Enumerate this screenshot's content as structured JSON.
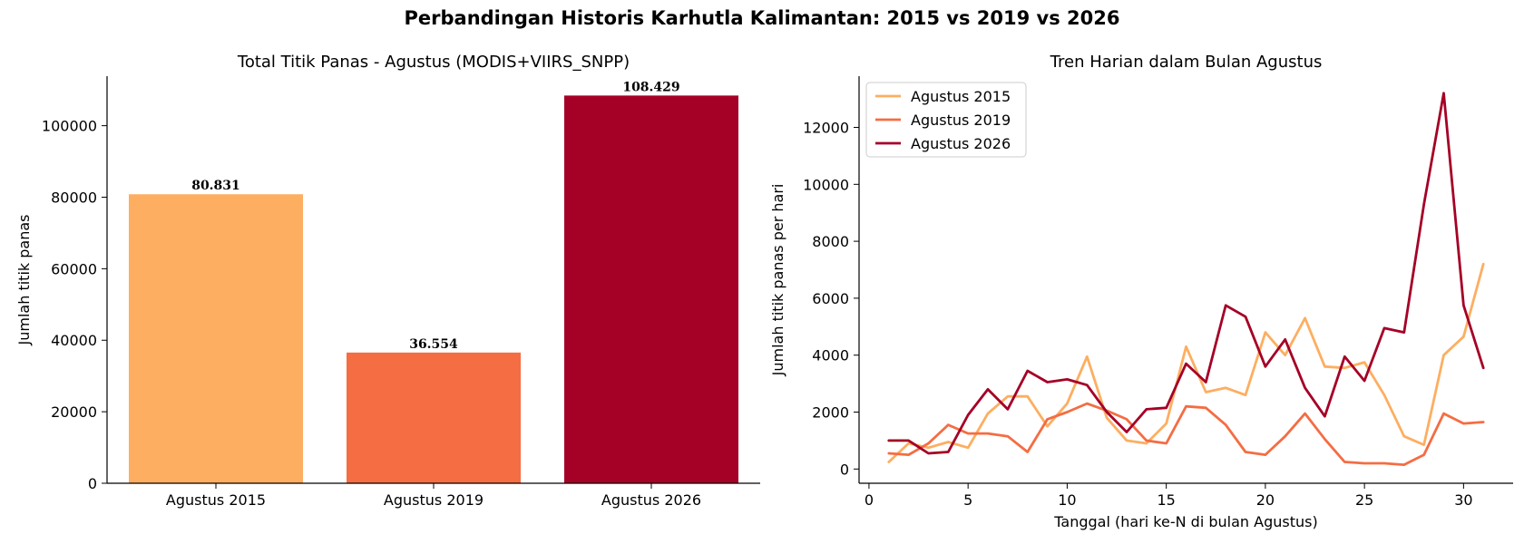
{
  "suptitle": "Perbandingan Historis Karhutla Kalimantan: 2015 vs 2019 vs 2026",
  "chart_data": [
    {
      "type": "bar",
      "title": "Total Titik Panas - Agustus (MODIS+VIIRS_SNPP)",
      "xlabel": "",
      "ylabel": "Jumlah titik panas",
      "categories": [
        "Agustus 2015",
        "Agustus 2019",
        "Agustus 2026"
      ],
      "values": [
        80831,
        36554,
        108429
      ],
      "value_labels": [
        "80.831",
        "36.554",
        "108.429"
      ],
      "colors": [
        "#fdae61",
        "#f46d43",
        "#a50026"
      ],
      "ylim": [
        0,
        113850
      ],
      "yticks": [
        0,
        20000,
        40000,
        60000,
        80000,
        100000
      ],
      "grid": false
    },
    {
      "type": "line",
      "title": "Tren Harian dalam Bulan Agustus",
      "xlabel": "Tanggal (hari ke-N di bulan Agustus)",
      "ylabel": "Jumlah titik panas per hari",
      "x": [
        1,
        2,
        3,
        4,
        5,
        6,
        7,
        8,
        9,
        10,
        11,
        12,
        13,
        14,
        15,
        16,
        17,
        18,
        19,
        20,
        21,
        22,
        23,
        24,
        25,
        26,
        27,
        28,
        29,
        30,
        31
      ],
      "xlim": [
        -0.5,
        32.5
      ],
      "ylim": [
        -500,
        13800
      ],
      "xticks": [
        0,
        5,
        10,
        15,
        20,
        25,
        30
      ],
      "yticks": [
        0,
        2000,
        4000,
        6000,
        8000,
        10000,
        12000
      ],
      "legend_position": "top-left",
      "grid": false,
      "series": [
        {
          "name": "Agustus 2015",
          "color": "#fdae61",
          "values": [
            250,
            900,
            750,
            950,
            750,
            1950,
            2550,
            2550,
            1500,
            2300,
            3950,
            1800,
            1000,
            900,
            1600,
            4300,
            2700,
            2850,
            2600,
            4800,
            4000,
            5300,
            3600,
            3550,
            3750,
            2600,
            1150,
            850,
            4000,
            4650,
            7200
          ]
        },
        {
          "name": "Agustus 2019",
          "color": "#f46d43",
          "values": [
            550,
            500,
            900,
            1550,
            1250,
            1250,
            1150,
            600,
            1750,
            2000,
            2300,
            2050,
            1750,
            1000,
            900,
            2200,
            2150,
            1550,
            600,
            500,
            1150,
            1950,
            1050,
            250,
            200,
            200,
            150,
            500,
            1950,
            1600,
            1650
          ]
        },
        {
          "name": "Agustus 2026",
          "color": "#a50026",
          "values": [
            1000,
            1000,
            550,
            600,
            1900,
            2800,
            2100,
            3450,
            3050,
            3150,
            2950,
            2000,
            1300,
            2100,
            2150,
            3700,
            3050,
            5750,
            5350,
            3600,
            4550,
            2850,
            1850,
            3950,
            3100,
            4950,
            4800,
            9300,
            13200,
            5750,
            3550
          ]
        }
      ]
    }
  ]
}
